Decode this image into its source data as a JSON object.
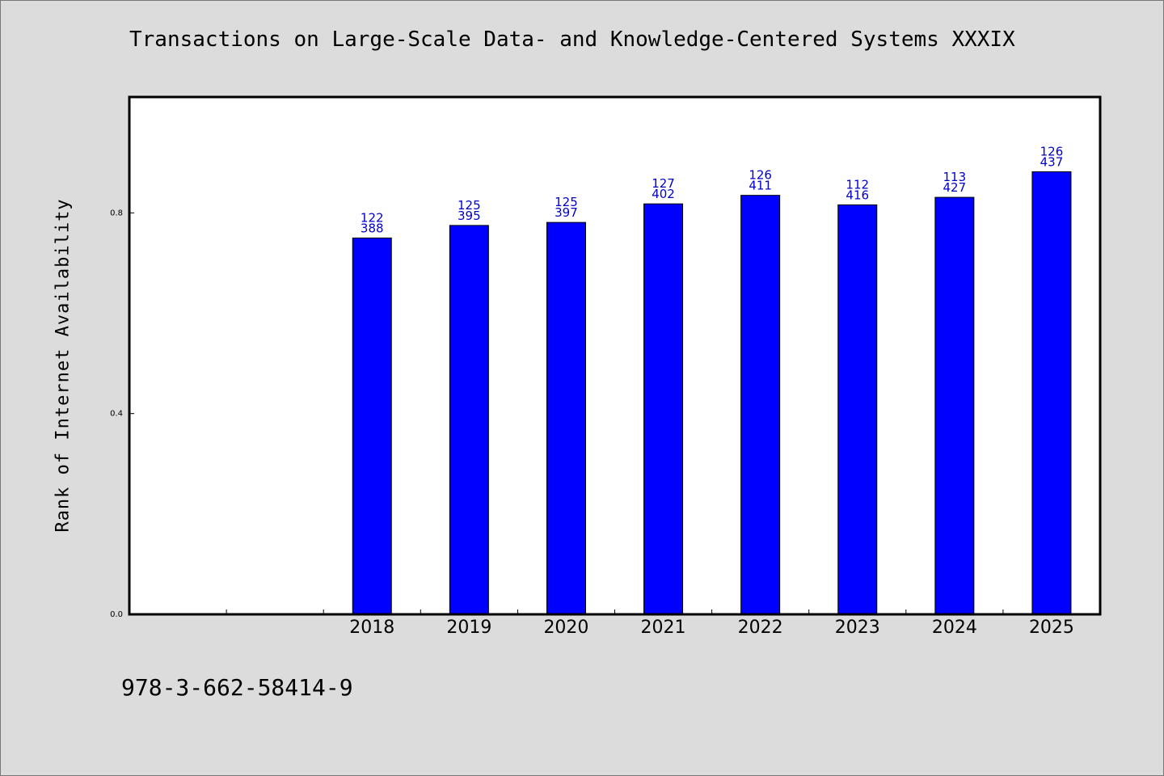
{
  "chart_data": {
    "type": "bar",
    "title": "Transactions on Large-Scale Data- and Knowledge-Centered Systems XXXIX",
    "xlabel": "",
    "ylabel": "Rank of Internet Availability",
    "ylim": [
      0.0,
      1.0
    ],
    "yticks": [
      "0.0",
      "0.4",
      "0.8"
    ],
    "categories": [
      "",
      "",
      "2018",
      "2019",
      "2020",
      "2021",
      "2022",
      "2023",
      "2024",
      "2025"
    ],
    "values": [
      null,
      null,
      0.75,
      0.775,
      0.781,
      0.818,
      0.835,
      0.816,
      0.831,
      0.882
    ],
    "data_labels": [
      [
        "",
        ""
      ],
      [
        "",
        ""
      ],
      [
        "122",
        "388"
      ],
      [
        "125",
        "395"
      ],
      [
        "125",
        "397"
      ],
      [
        "127",
        "402"
      ],
      [
        "126",
        "411"
      ],
      [
        "112",
        "416"
      ],
      [
        "113",
        "427"
      ],
      [
        "126",
        "437"
      ]
    ],
    "bar_color": "#0000ff",
    "label_color": "#0000cc",
    "grid": false,
    "legend": "none"
  },
  "footer": {
    "isbn": "978-3-662-58414-9"
  }
}
